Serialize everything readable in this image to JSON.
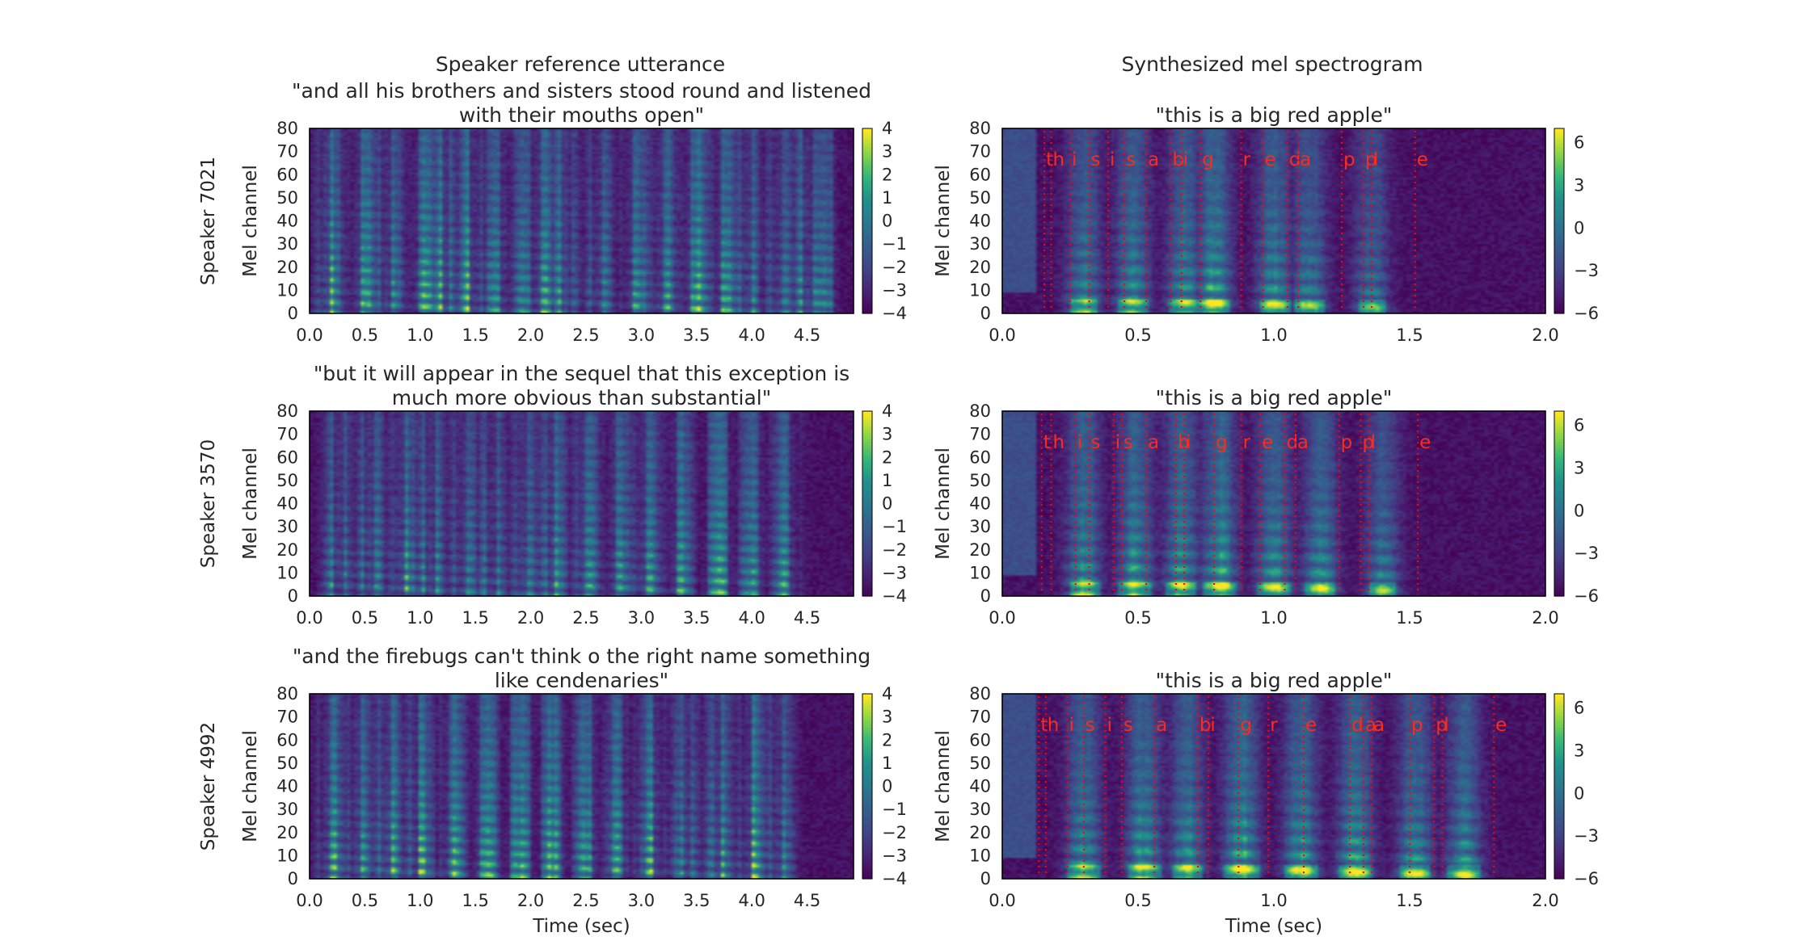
{
  "figure": {
    "left_column_title": "Speaker reference utterance",
    "right_column_title": "Synthesized mel spectrogram",
    "colors": {
      "frame": "#000000",
      "alignment_line": "#ff0000",
      "background": "#ffffff"
    },
    "colormap": "viridis"
  },
  "chart_data": [
    {
      "type": "heatmap",
      "row": 0,
      "col": 0,
      "title": "\"and all his brothers and sisters stood round and listened with their mouths open\"",
      "title_lines": [
        "\"and all his brothers and sisters stood round and listened",
        "with their mouths open\""
      ],
      "row_label": "Speaker 7021",
      "ylabel": "Mel channel",
      "xlabel": "",
      "xlim": [
        0,
        4.92
      ],
      "ylim": [
        0,
        80
      ],
      "xticks": [
        "0.0",
        "0.5",
        "1.0",
        "1.5",
        "2.0",
        "2.5",
        "3.0",
        "3.5",
        "4.0",
        "4.5"
      ],
      "yticks": [
        "0",
        "10",
        "20",
        "30",
        "40",
        "50",
        "60",
        "70",
        "80"
      ],
      "colorbar": {
        "range": [
          -4,
          4
        ],
        "ticks": [
          "4",
          "3",
          "2",
          "1",
          "0",
          "−1",
          "−2",
          "−3",
          "−4"
        ]
      },
      "segments": [
        [
          0.18,
          0.9
        ],
        [
          0.5,
          0.9
        ],
        [
          0.72,
          0.85
        ],
        [
          1.05,
          0.85
        ],
        [
          1.2,
          0.9
        ],
        [
          1.45,
          0.9
        ],
        [
          1.7,
          0.85
        ],
        [
          1.95,
          0.7
        ],
        [
          2.1,
          0.85
        ],
        [
          2.3,
          0.95
        ],
        [
          2.62,
          0.8
        ],
        [
          2.95,
          0.85
        ],
        [
          3.2,
          0.85
        ],
        [
          3.5,
          0.9
        ],
        [
          3.75,
          0.8
        ],
        [
          3.95,
          0.85
        ],
        [
          4.25,
          0.8
        ],
        [
          4.5,
          0.85
        ],
        [
          4.65,
          0.75
        ]
      ],
      "seed": 11
    },
    {
      "type": "heatmap",
      "row": 0,
      "col": 1,
      "title": "\"this is a big red apple\"",
      "title_lines": [
        "\"this is a big red apple\""
      ],
      "row_label": "",
      "ylabel": "Mel channel",
      "xlabel": "",
      "xlim": [
        0,
        2.0
      ],
      "ylim": [
        0,
        80
      ],
      "xticks": [
        "0.0",
        "0.5",
        "1.0",
        "1.5",
        "2.0"
      ],
      "yticks": [
        "0",
        "10",
        "20",
        "30",
        "40",
        "50",
        "60",
        "70",
        "80"
      ],
      "colorbar": {
        "range": [
          -6,
          7
        ],
        "ticks": [
          "6",
          "3",
          "0",
          "−3",
          "−6"
        ]
      },
      "alignment": [
        {
          "p": "t",
          "t": 0.155
        },
        {
          "p": "h",
          "t": 0.18
        },
        {
          "p": "i",
          "t": 0.25
        },
        {
          "p": "s",
          "t": 0.32
        },
        {
          "p": "i",
          "t": 0.39
        },
        {
          "p": "s",
          "t": 0.45
        },
        {
          "p": "a",
          "t": 0.53
        },
        {
          "p": "b",
          "t": 0.62
        },
        {
          "p": "i",
          "t": 0.66
        },
        {
          "p": "g",
          "t": 0.73
        },
        {
          "p": "r",
          "t": 0.88
        },
        {
          "p": "e",
          "t": 0.96
        },
        {
          "p": "d",
          "t": 1.05
        },
        {
          "p": "a",
          "t": 1.09
        },
        {
          "p": "p",
          "t": 1.25
        },
        {
          "p": "p",
          "t": 1.33
        },
        {
          "p": "l",
          "t": 1.36
        },
        {
          "p": "e",
          "t": 1.52
        }
      ],
      "segments": [
        [
          0.3,
          0.75
        ],
        [
          0.48,
          0.8
        ],
        [
          0.67,
          0.75
        ],
        [
          0.78,
          0.9
        ],
        [
          1.0,
          0.8
        ],
        [
          1.13,
          0.7
        ],
        [
          1.36,
          0.6
        ]
      ],
      "seed": 21
    },
    {
      "type": "heatmap",
      "row": 1,
      "col": 0,
      "title": "\"but it will appear in the sequel that this exception is much more obvious than substantial\"",
      "title_lines": [
        "\"but it will appear in the sequel that this exception is",
        "much more obvious than substantial\""
      ],
      "row_label": "Speaker 3570",
      "ylabel": "Mel channel",
      "xlabel": "",
      "xlim": [
        0,
        4.92
      ],
      "ylim": [
        0,
        80
      ],
      "xticks": [
        "0.0",
        "0.5",
        "1.0",
        "1.5",
        "2.0",
        "2.5",
        "3.0",
        "3.5",
        "4.0",
        "4.5"
      ],
      "yticks": [
        "0",
        "10",
        "20",
        "30",
        "40",
        "50",
        "60",
        "70",
        "80"
      ],
      "colorbar": {
        "range": [
          -4,
          4
        ],
        "ticks": [
          "4",
          "3",
          "2",
          "1",
          "0",
          "−1",
          "−2",
          "−3",
          "−4"
        ]
      },
      "segments": [
        [
          0.25,
          0.85
        ],
        [
          0.55,
          0.95
        ],
        [
          0.85,
          0.85
        ],
        [
          1.1,
          0.9
        ],
        [
          1.4,
          0.8
        ],
        [
          1.65,
          0.8
        ],
        [
          1.95,
          0.85
        ],
        [
          2.2,
          0.9
        ],
        [
          2.5,
          0.85
        ],
        [
          2.8,
          0.8
        ],
        [
          3.05,
          0.85
        ],
        [
          3.35,
          0.8
        ],
        [
          3.7,
          0.85
        ],
        [
          4.0,
          0.8
        ],
        [
          4.3,
          0.75
        ]
      ],
      "seed": 33
    },
    {
      "type": "heatmap",
      "row": 1,
      "col": 1,
      "title": "\"this is a big red apple\"",
      "title_lines": [
        "\"this is a big red apple\""
      ],
      "row_label": "",
      "ylabel": "Mel channel",
      "xlabel": "",
      "xlim": [
        0,
        2.0
      ],
      "ylim": [
        0,
        80
      ],
      "xticks": [
        "0.0",
        "0.5",
        "1.0",
        "1.5",
        "2.0"
      ],
      "yticks": [
        "0",
        "10",
        "20",
        "30",
        "40",
        "50",
        "60",
        "70",
        "80"
      ],
      "colorbar": {
        "range": [
          -6,
          7
        ],
        "ticks": [
          "6",
          "3",
          "0",
          "−3",
          "−6"
        ]
      },
      "alignment": [
        {
          "p": "t",
          "t": 0.145
        },
        {
          "p": "h",
          "t": 0.18
        },
        {
          "p": "i",
          "t": 0.27
        },
        {
          "p": "s",
          "t": 0.32
        },
        {
          "p": "i",
          "t": 0.41
        },
        {
          "p": "s",
          "t": 0.44
        },
        {
          "p": "a",
          "t": 0.53
        },
        {
          "p": "b",
          "t": 0.64
        },
        {
          "p": "i",
          "t": 0.67
        },
        {
          "p": "g",
          "t": 0.78
        },
        {
          "p": "r",
          "t": 0.88
        },
        {
          "p": "e",
          "t": 0.95
        },
        {
          "p": "d",
          "t": 1.04
        },
        {
          "p": "a",
          "t": 1.08
        },
        {
          "p": "p",
          "t": 1.24
        },
        {
          "p": "p",
          "t": 1.32
        },
        {
          "p": "l",
          "t": 1.35
        },
        {
          "p": "e",
          "t": 1.53
        }
      ],
      "segments": [
        [
          0.3,
          0.8
        ],
        [
          0.49,
          0.85
        ],
        [
          0.66,
          0.8
        ],
        [
          0.8,
          0.9
        ],
        [
          1.0,
          0.85
        ],
        [
          1.17,
          0.8
        ],
        [
          1.4,
          0.65
        ]
      ],
      "seed": 44
    },
    {
      "type": "heatmap",
      "row": 2,
      "col": 0,
      "title": "\"and the firebugs can't think o the right name something like cendenaries\"",
      "title_lines": [
        "\"and the firebugs can't think o the right name something",
        "like cendenaries\""
      ],
      "row_label": "Speaker 4992",
      "ylabel": "Mel channel",
      "xlabel": "Time (sec)",
      "xlim": [
        0,
        4.92
      ],
      "ylim": [
        0,
        80
      ],
      "xticks": [
        "0.0",
        "0.5",
        "1.0",
        "1.5",
        "2.0",
        "2.5",
        "3.0",
        "3.5",
        "4.0",
        "4.5"
      ],
      "yticks": [
        "0",
        "10",
        "20",
        "30",
        "40",
        "50",
        "60",
        "70",
        "80"
      ],
      "colorbar": {
        "range": [
          -4,
          4
        ],
        "ticks": [
          "4",
          "3",
          "2",
          "1",
          "0",
          "−1",
          "−2",
          "−3",
          "−4"
        ]
      },
      "segments": [
        [
          0.2,
          0.85
        ],
        [
          0.45,
          0.8
        ],
        [
          0.72,
          0.95
        ],
        [
          1.0,
          0.85
        ],
        [
          1.3,
          0.8
        ],
        [
          1.6,
          0.9
        ],
        [
          1.9,
          0.85
        ],
        [
          2.2,
          0.9
        ],
        [
          2.5,
          0.85
        ],
        [
          2.8,
          0.8
        ],
        [
          3.1,
          0.85
        ],
        [
          3.4,
          0.8
        ],
        [
          3.7,
          0.85
        ],
        [
          4.0,
          0.9
        ],
        [
          4.25,
          0.8
        ]
      ],
      "seed": 55
    },
    {
      "type": "heatmap",
      "row": 2,
      "col": 1,
      "title": "\"this is a big red apple\"",
      "title_lines": [
        "\"this is a big red apple\""
      ],
      "row_label": "",
      "ylabel": "Mel channel",
      "xlabel": "Time (sec)",
      "xlim": [
        0,
        2.0
      ],
      "ylim": [
        0,
        80
      ],
      "xticks": [
        "0.0",
        "0.5",
        "1.0",
        "1.5",
        "2.0"
      ],
      "yticks": [
        "0",
        "10",
        "20",
        "30",
        "40",
        "50",
        "60",
        "70",
        "80"
      ],
      "colorbar": {
        "range": [
          -6,
          7
        ],
        "ticks": [
          "6",
          "3",
          "0",
          "−3",
          "−6"
        ]
      },
      "alignment": [
        {
          "p": "t",
          "t": 0.135
        },
        {
          "p": "h",
          "t": 0.16
        },
        {
          "p": "i",
          "t": 0.24
        },
        {
          "p": "s",
          "t": 0.3
        },
        {
          "p": "i",
          "t": 0.38
        },
        {
          "p": "s",
          "t": 0.44
        },
        {
          "p": "a",
          "t": 0.56
        },
        {
          "p": "b",
          "t": 0.72
        },
        {
          "p": "i",
          "t": 0.76
        },
        {
          "p": "g",
          "t": 0.87
        },
        {
          "p": "r",
          "t": 0.98
        },
        {
          "p": "e",
          "t": 1.11
        },
        {
          "p": "d",
          "t": 1.28
        },
        {
          "p": "a",
          "t": 1.33
        },
        {
          "p": "a",
          "t": 1.36
        },
        {
          "p": "p",
          "t": 1.5
        },
        {
          "p": "p",
          "t": 1.59
        },
        {
          "p": "l",
          "t": 1.62
        },
        {
          "p": "e",
          "t": 1.81
        }
      ],
      "segments": [
        [
          0.3,
          0.8
        ],
        [
          0.52,
          0.85
        ],
        [
          0.68,
          0.8
        ],
        [
          0.88,
          0.95
        ],
        [
          1.1,
          0.85
        ],
        [
          1.3,
          0.9
        ],
        [
          1.52,
          0.8
        ],
        [
          1.7,
          0.75
        ]
      ],
      "seed": 66
    }
  ]
}
